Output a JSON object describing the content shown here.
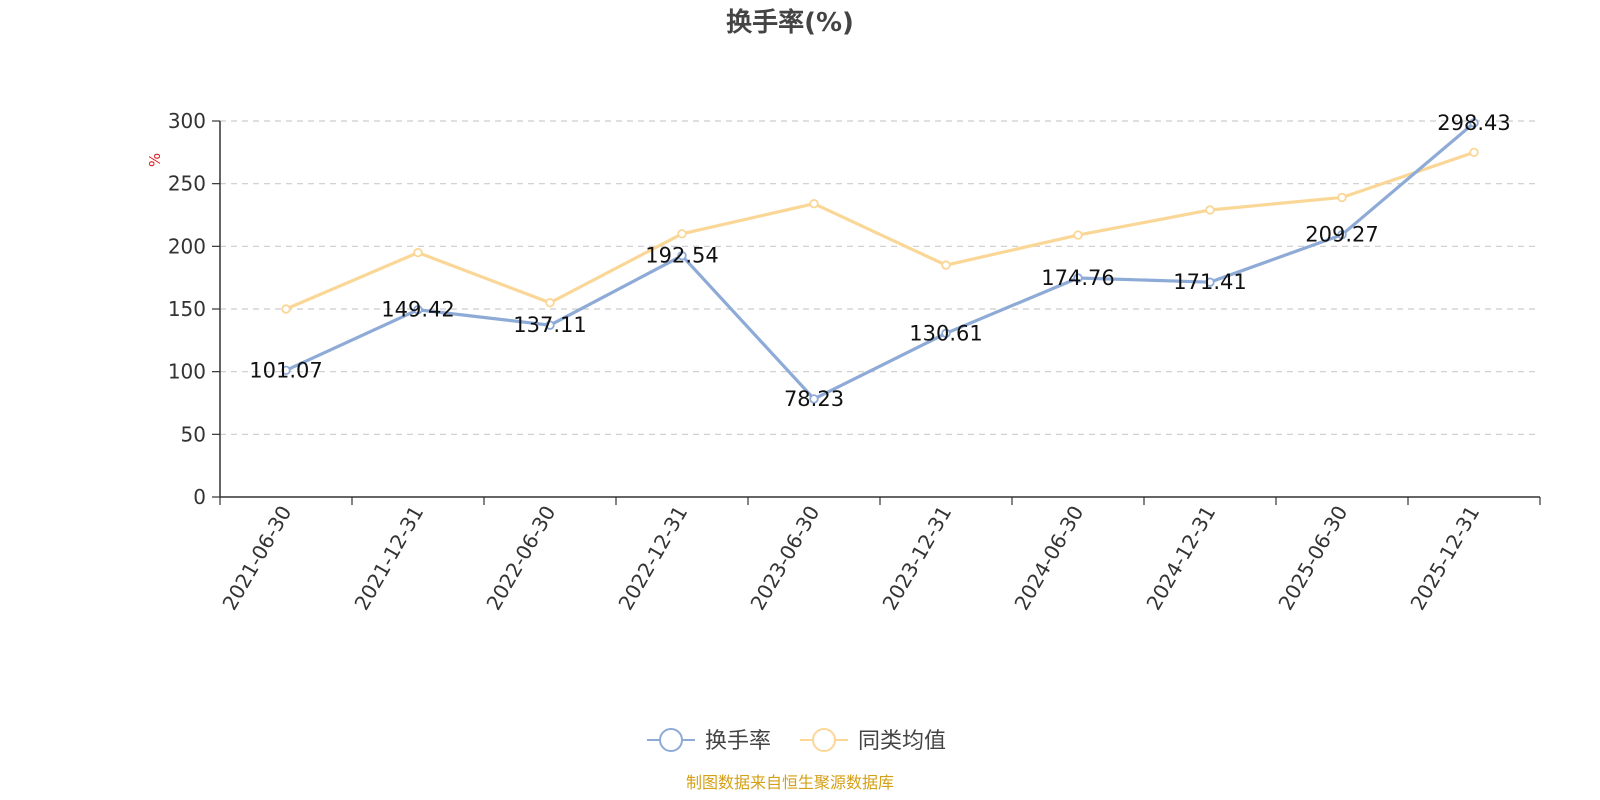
{
  "chart_data": {
    "type": "line",
    "title": "换手率(%)",
    "ylabel": "%",
    "categories": [
      "2021-06-30",
      "2021-12-31",
      "2022-06-30",
      "2022-12-31",
      "2023-06-30",
      "2023-12-31",
      "2024-06-30",
      "2024-12-31",
      "2025-06-30",
      "2025-12-31"
    ],
    "ylim": [
      0,
      300
    ],
    "yticks": [
      0,
      50,
      100,
      150,
      200,
      250,
      300
    ],
    "grid": true,
    "legend_position": "bottom",
    "series": [
      {
        "name": "换手率",
        "color": "#8eaad6",
        "values": [
          101.07,
          149.42,
          137.11,
          192.54,
          78.23,
          130.61,
          174.76,
          171.41,
          209.27,
          298.43
        ],
        "labels": [
          "101.07",
          "149.42",
          "137.11",
          "192.54",
          "78.23",
          "130.61",
          "174.76",
          "171.41",
          "209.27",
          "298.43"
        ]
      },
      {
        "name": "同类均值",
        "color": "#fad797",
        "values": [
          150,
          195,
          155,
          210,
          234,
          185,
          209,
          229,
          239,
          275
        ]
      }
    ],
    "unit_color": "#e02020",
    "source_note": "制图数据来自恒生聚源数据库",
    "source_color": "#d4a017"
  }
}
